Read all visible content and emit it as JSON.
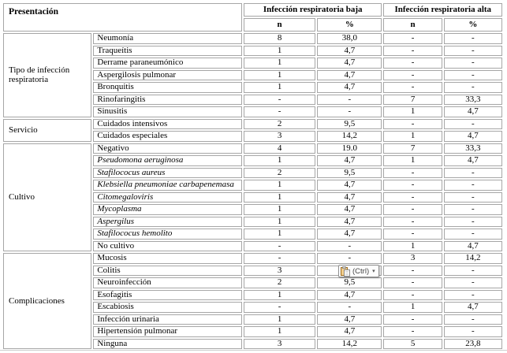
{
  "table": {
    "header": {
      "presentacion": "Presentación",
      "groups": [
        {
          "label": "Infección respiratoria baja",
          "cols": [
            "n",
            "%"
          ]
        },
        {
          "label": "Infección respiratoria alta",
          "cols": [
            "n",
            "%"
          ]
        }
      ]
    },
    "sections": [
      {
        "category": "Tipo de infección respiratoria",
        "rows": [
          {
            "label": "Neumonía",
            "italic": false,
            "values": [
              "8",
              "38,0",
              "-",
              "-"
            ]
          },
          {
            "label": "Traqueítis",
            "italic": false,
            "values": [
              "1",
              "4,7",
              "-",
              "-"
            ]
          },
          {
            "label": "Derrame  paraneumónico",
            "italic": false,
            "values": [
              "1",
              "4,7",
              "-",
              "-"
            ]
          },
          {
            "label": "Aspergilosis pulmonar",
            "italic": false,
            "values": [
              "1",
              "4,7",
              "-",
              "-"
            ]
          },
          {
            "label": "Bronquitis",
            "italic": false,
            "values": [
              "1",
              "4,7",
              "-",
              "-"
            ]
          },
          {
            "label": "Rinofaringitis",
            "italic": false,
            "values": [
              "-",
              "-",
              "7",
              "33,3"
            ]
          },
          {
            "label": "Sinusitis",
            "italic": false,
            "values": [
              "-",
              "-",
              "1",
              "4,7"
            ]
          }
        ]
      },
      {
        "category": "Servicio",
        "rows": [
          {
            "label": "Cuidados intensivos",
            "italic": false,
            "values": [
              "2",
              "9,5",
              "-",
              "-"
            ]
          },
          {
            "label": "Cuidados especiales",
            "italic": false,
            "values": [
              "3",
              "14,2",
              "1",
              "4,7"
            ]
          }
        ]
      },
      {
        "category": "Cultivo",
        "rows": [
          {
            "label": "Negativo",
            "italic": false,
            "values": [
              "4",
              "19.0",
              "7",
              "33,3"
            ]
          },
          {
            "label": "Pseudomona aeruginosa",
            "italic": true,
            "values": [
              "1",
              "4,7",
              "1",
              "4,7"
            ]
          },
          {
            "label": "Stafilococus aureus",
            "italic": true,
            "values": [
              "2",
              "9,5",
              "-",
              "-"
            ]
          },
          {
            "label": "Klebsiella pneumoniae carbapenemasa",
            "italic": true,
            "values": [
              "1",
              "4,7",
              "-",
              "-"
            ]
          },
          {
            "label": "Citomegaloviris",
            "italic": true,
            "values": [
              "1",
              "4,7",
              "-",
              "-"
            ]
          },
          {
            "label": "Mycoplasma",
            "italic": true,
            "values": [
              "1",
              "4,7",
              "-",
              "-"
            ]
          },
          {
            "label": "Aspergilus",
            "italic": true,
            "values": [
              "1",
              "4,7",
              "-",
              "-"
            ]
          },
          {
            "label": "Stafilococus hemolito",
            "italic": true,
            "values": [
              "1",
              "4,7",
              "-",
              "-"
            ]
          },
          {
            "label": "No cultivo",
            "italic": false,
            "values": [
              "-",
              "-",
              "1",
              "4,7"
            ]
          }
        ]
      },
      {
        "category": "Complicaciones",
        "rows": [
          {
            "label": "Mucosis",
            "italic": false,
            "values": [
              "-",
              "-",
              "3",
              "14,2"
            ]
          },
          {
            "label": "Colitis",
            "italic": false,
            "values": [
              "3",
              "14,",
              "-",
              "-"
            ],
            "paste_button": true
          },
          {
            "label": "Neuroinfección",
            "italic": false,
            "values": [
              "2",
              "9,5",
              "-",
              "-"
            ]
          },
          {
            "label": "Esofagitis",
            "italic": false,
            "values": [
              "1",
              "4,7",
              "-",
              "-"
            ]
          },
          {
            "label": "Escabiosis",
            "italic": false,
            "values": [
              "-",
              "-",
              "1",
              "4,7"
            ]
          },
          {
            "label": "Infección urinaria",
            "italic": false,
            "values": [
              "1",
              "4,7",
              "-",
              "-"
            ]
          },
          {
            "label": "Hipertensión pulmonar",
            "italic": false,
            "values": [
              "1",
              "4,7",
              "-",
              "-"
            ]
          },
          {
            "label": "Ninguna",
            "italic": false,
            "values": [
              "3",
              "14,2",
              "5",
              "23,8"
            ]
          }
        ]
      }
    ]
  },
  "paste_options": {
    "label": "(Ctrl)",
    "arrow": "▾"
  },
  "colors": {
    "cell_border": "#a6a6a6",
    "text": "#000000",
    "background": "#ffffff",
    "clipboard_body": "#f3cf8e",
    "clipboard_outline": "#9c6b1e",
    "bottom_rule": "#cfcfcf"
  }
}
